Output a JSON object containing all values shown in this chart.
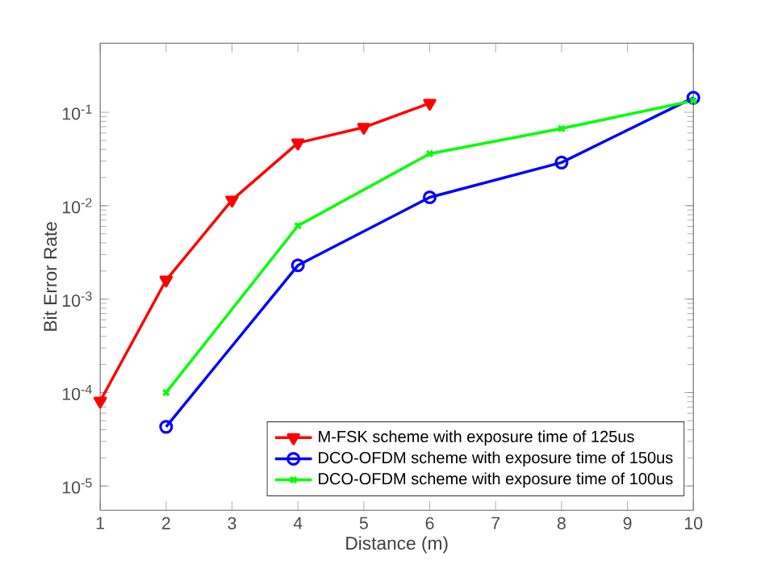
{
  "chart_data": {
    "type": "line",
    "xlabel": "Distance (m)",
    "ylabel": "Bit Error Rate",
    "log": "y",
    "xlim": [
      1,
      10
    ],
    "xticks": [
      1,
      2,
      3,
      4,
      5,
      6,
      7,
      8,
      9,
      10
    ],
    "ylim": [
      5.5e-06,
      0.55
    ],
    "yticks": [
      {
        "value": 1e-05,
        "label": "10$^{-5}$"
      },
      {
        "value": 0.0001,
        "label": "10$^{-4}$"
      },
      {
        "value": 0.001,
        "label": "10$^{-3}$"
      },
      {
        "value": 0.01,
        "label": "10$^{-2}$"
      },
      {
        "value": 0.1,
        "label": "10$^{-1}$"
      }
    ],
    "legend": "bottom right",
    "grid": false,
    "line_style": "solid",
    "series": [
      {
        "name": "M-FSK scheme with exposure time of 125us",
        "color": "#ff0000",
        "marker": "triangle",
        "x": [
          1,
          2,
          3,
          4,
          5,
          6
        ],
        "values": [
          8.1e-05,
          0.0016,
          0.0115,
          0.047,
          0.069,
          0.125
        ]
      },
      {
        "name": "DCO-OFDM scheme with exposure time of 150us",
        "color": "#0000ff",
        "marker": "circle",
        "x": [
          2,
          4,
          6,
          8,
          10
        ],
        "values": [
          4.3e-05,
          0.0023,
          0.0123,
          0.029,
          0.143
        ]
      },
      {
        "name": "DCO-OFDM scheme with exposure time of 100us",
        "color": "#00ff00",
        "marker": "cross",
        "x": [
          2,
          4,
          6,
          8,
          10
        ],
        "values": [
          0.0001,
          0.0061,
          0.036,
          0.067,
          0.133
        ]
      }
    ]
  }
}
